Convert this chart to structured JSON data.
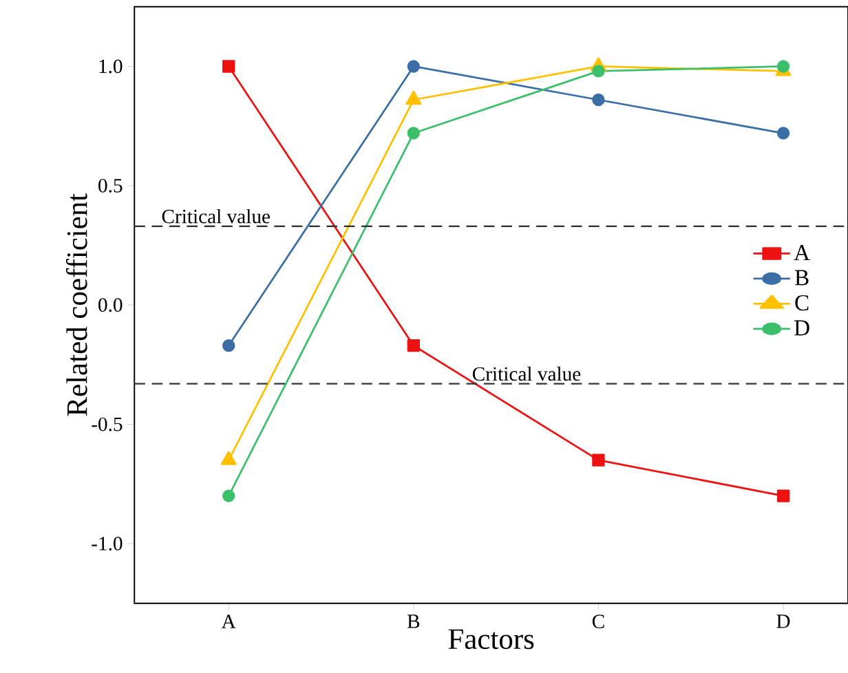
{
  "chart_data": {
    "type": "line",
    "xlabel": "Factors",
    "ylabel": "Related coefficient",
    "categories": [
      "A",
      "B",
      "C",
      "D"
    ],
    "series": [
      {
        "name": "A",
        "color": "#ee1111",
        "marker": "square",
        "values": [
          1.0,
          -0.17,
          -0.65,
          -0.8
        ]
      },
      {
        "name": "B",
        "color": "#3a6ea5",
        "marker": "circle",
        "values": [
          -0.17,
          1.0,
          0.86,
          0.72
        ]
      },
      {
        "name": "C",
        "color": "#ffc000",
        "marker": "triangle",
        "values": [
          -0.65,
          0.86,
          1.0,
          0.98
        ]
      },
      {
        "name": "D",
        "color": "#3cbf6a",
        "marker": "circle",
        "values": [
          -0.8,
          0.72,
          0.98,
          1.0
        ]
      }
    ],
    "ylim": [
      -1.25,
      1.25
    ],
    "yticks": [
      {
        "value": -1.0,
        "label": "-1.0"
      },
      {
        "value": -0.5,
        "label": "-0.5"
      },
      {
        "value": 0.0,
        "label": "0.0"
      },
      {
        "value": 0.5,
        "label": "0.5"
      },
      {
        "value": 1.0,
        "label": "1.0"
      }
    ],
    "ref_lines": [
      {
        "axis": "y",
        "value": 0.33,
        "label": "Critical value",
        "color": "#333333",
        "line_style": "dashed"
      },
      {
        "axis": "y",
        "value": -0.33,
        "label": "Critical value",
        "color": "#333333",
        "line_style": "dashed"
      }
    ],
    "legend": "right",
    "grid": false,
    "line_style": "solid"
  }
}
